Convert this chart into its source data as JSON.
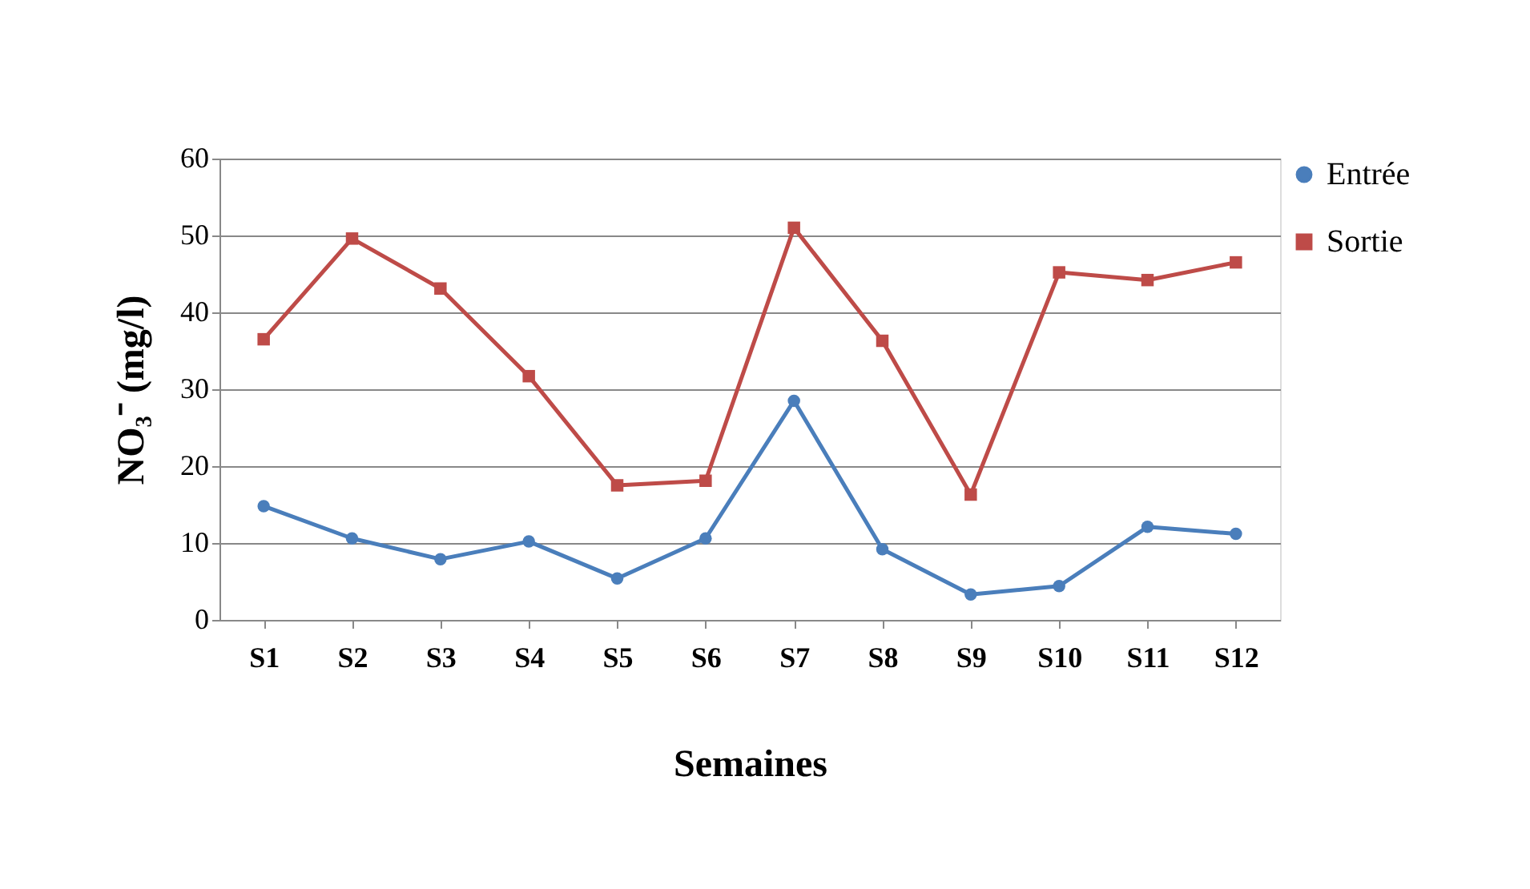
{
  "chart_data": {
    "type": "line",
    "xlabel": "Semaines",
    "ylabel": "NO₃⁻ (mg/l)",
    "categories": [
      "S1",
      "S2",
      "S3",
      "S4",
      "S5",
      "S6",
      "S7",
      "S8",
      "S9",
      "S10",
      "S11",
      "S12"
    ],
    "series": [
      {
        "name": "Entrée",
        "color": "#4a7ebb",
        "marker": "circle",
        "values": [
          14.8,
          10.6,
          7.9,
          10.2,
          5.4,
          10.6,
          28.5,
          9.2,
          3.3,
          4.4,
          12.1,
          11.2
        ]
      },
      {
        "name": "Sortie",
        "color": "#be4b48",
        "marker": "square",
        "values": [
          36.5,
          49.6,
          43.1,
          31.7,
          17.5,
          18.1,
          51.0,
          36.3,
          16.3,
          45.2,
          44.2,
          46.5
        ]
      }
    ],
    "ylim": [
      0,
      60
    ],
    "yticks": [
      0,
      10,
      20,
      30,
      40,
      50,
      60
    ],
    "grid": "y",
    "legend": "right",
    "line_style": "solid"
  }
}
